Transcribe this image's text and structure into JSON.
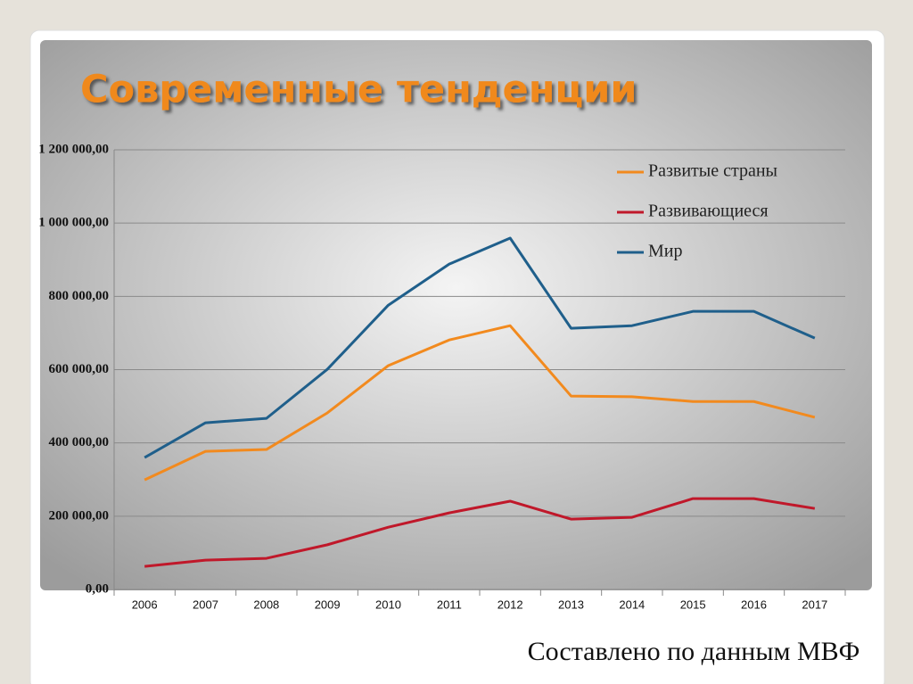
{
  "chart_data": {
    "type": "line",
    "title": "Современные тенденции",
    "source": "Составлено по данным МВФ",
    "categories": [
      "2006",
      "2007",
      "2008",
      "2009",
      "2010",
      "2011",
      "2012",
      "2013",
      "2014",
      "2015",
      "2016",
      "2017"
    ],
    "series": [
      {
        "name": "Развитые страны",
        "color": "#f28a1e",
        "values": [
          299000,
          377000,
          382000,
          482000,
          611000,
          681000,
          720000,
          528000,
          526000,
          513000,
          513000,
          470000
        ]
      },
      {
        "name": "Развивающиеся",
        "color": "#c0182a",
        "values": [
          63000,
          80000,
          85000,
          122000,
          170000,
          209000,
          241000,
          192000,
          197000,
          248000,
          248000,
          221000
        ]
      },
      {
        "name": "Мир",
        "color": "#1f5f8b",
        "values": [
          360000,
          455000,
          467000,
          601000,
          776000,
          888000,
          959000,
          713000,
          720000,
          759000,
          759000,
          686000
        ]
      }
    ],
    "ylim": [
      0,
      1200000
    ],
    "yticks": [
      {
        "value": 0,
        "label": "0,00"
      },
      {
        "value": 200000,
        "label": "200 000,00"
      },
      {
        "value": 400000,
        "label": "400 000,00"
      },
      {
        "value": 600000,
        "label": "600 000,00"
      },
      {
        "value": 800000,
        "label": "800 000,00"
      },
      {
        "value": 1000000,
        "label": "1 000 000,00"
      },
      {
        "value": 1200000,
        "label": "1 200 000,00"
      }
    ],
    "grid": true,
    "legend": "top-right"
  }
}
